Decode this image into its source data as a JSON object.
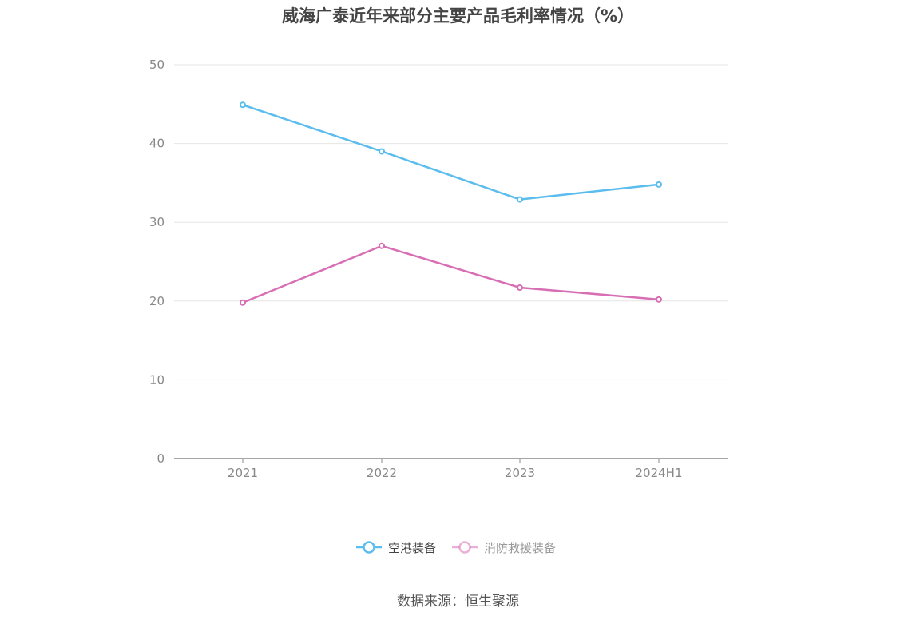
{
  "chart_data": {
    "type": "line",
    "title": "威海广泰近年来部分主要产品毛利率情况（%）",
    "categories": [
      "2021",
      "2022",
      "2023",
      "2024H1"
    ],
    "series": [
      {
        "name": "空港装备",
        "values": [
          44.9,
          39.0,
          32.9,
          34.8
        ],
        "color": "#5bbcee"
      },
      {
        "name": "消防救援装备",
        "values": [
          19.8,
          27.0,
          21.7,
          20.2
        ],
        "color": "#d86fb4"
      }
    ],
    "ylim": [
      0,
      50
    ],
    "yticks": [
      0,
      10,
      20,
      30,
      40,
      50
    ],
    "grid": true,
    "legend": "bottom"
  },
  "footer": {
    "source": "数据来源：恒生聚源"
  }
}
